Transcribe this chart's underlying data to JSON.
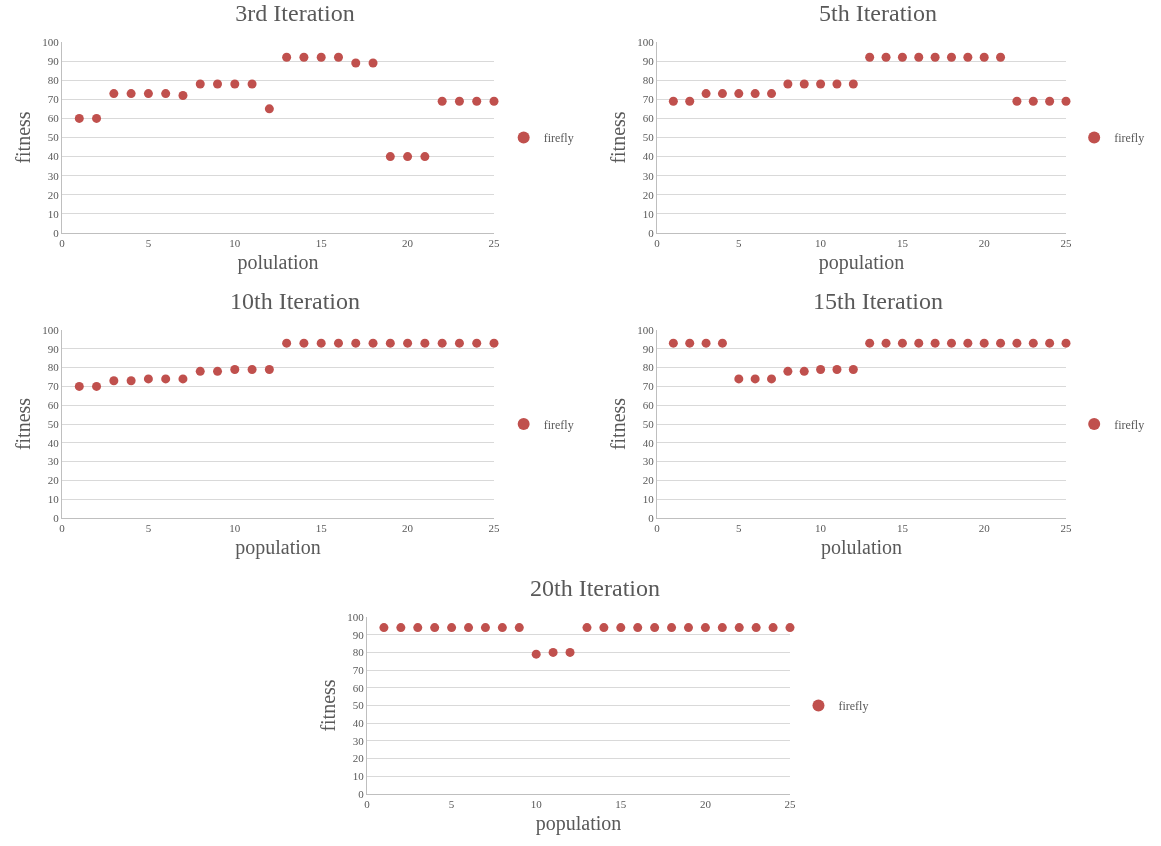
{
  "chart_data": [
    {
      "type": "scatter",
      "title": "3rd Iteration",
      "xlabel": "polulation",
      "ylabel": "fitness",
      "x": [
        1,
        2,
        3,
        4,
        5,
        6,
        7,
        8,
        9,
        10,
        11,
        12,
        13,
        14,
        15,
        16,
        17,
        18,
        19,
        20,
        21,
        22,
        23,
        24,
        25
      ],
      "series": [
        {
          "name": "firefly",
          "color": "#c0504d",
          "values": [
            60,
            60,
            73,
            73,
            73,
            73,
            72,
            78,
            78,
            78,
            78,
            65,
            92,
            92,
            92,
            92,
            89,
            89,
            40,
            40,
            40,
            69,
            69,
            69,
            69
          ]
        }
      ],
      "xlim": [
        0,
        25
      ],
      "xticks": [
        0,
        5,
        10,
        15,
        20,
        25
      ],
      "ylim": [
        0,
        100
      ],
      "yticks": [
        0,
        10,
        20,
        30,
        40,
        50,
        60,
        70,
        80,
        90,
        100
      ],
      "grid": "y",
      "legend": "right",
      "marker": "circle"
    },
    {
      "type": "scatter",
      "title": "5th Iteration",
      "xlabel": "population",
      "ylabel": "fitness",
      "x": [
        1,
        2,
        3,
        4,
        5,
        6,
        7,
        8,
        9,
        10,
        11,
        12,
        13,
        14,
        15,
        16,
        17,
        18,
        19,
        20,
        21,
        22,
        23,
        24,
        25
      ],
      "series": [
        {
          "name": "firefly",
          "color": "#c0504d",
          "values": [
            69,
            69,
            73,
            73,
            73,
            73,
            73,
            78,
            78,
            78,
            78,
            78,
            92,
            92,
            92,
            92,
            92,
            92,
            92,
            92,
            92,
            69,
            69,
            69,
            69
          ]
        }
      ],
      "xlim": [
        0,
        25
      ],
      "xticks": [
        0,
        5,
        10,
        15,
        20,
        25
      ],
      "ylim": [
        0,
        100
      ],
      "yticks": [
        0,
        10,
        20,
        30,
        40,
        50,
        60,
        70,
        80,
        90,
        100
      ],
      "grid": "y",
      "legend": "right",
      "marker": "circle"
    },
    {
      "type": "scatter",
      "title": "10th Iteration",
      "xlabel": "population",
      "ylabel": "fitness",
      "x": [
        1,
        2,
        3,
        4,
        5,
        6,
        7,
        8,
        9,
        10,
        11,
        12,
        13,
        14,
        15,
        16,
        17,
        18,
        19,
        20,
        21,
        22,
        23,
        24,
        25
      ],
      "series": [
        {
          "name": "firefly",
          "color": "#c0504d",
          "values": [
            70,
            70,
            73,
            73,
            74,
            74,
            74,
            78,
            78,
            79,
            79,
            79,
            93,
            93,
            93,
            93,
            93,
            93,
            93,
            93,
            93,
            93,
            93,
            93,
            93
          ]
        }
      ],
      "xlim": [
        0,
        25
      ],
      "xticks": [
        0,
        5,
        10,
        15,
        20,
        25
      ],
      "ylim": [
        0,
        100
      ],
      "yticks": [
        0,
        10,
        20,
        30,
        40,
        50,
        60,
        70,
        80,
        90,
        100
      ],
      "grid": "y",
      "legend": "right",
      "marker": "circle"
    },
    {
      "type": "scatter",
      "title": "15th Iteration",
      "xlabel": "polulation",
      "ylabel": "fitness",
      "x": [
        1,
        2,
        3,
        4,
        5,
        6,
        7,
        8,
        9,
        10,
        11,
        12,
        13,
        14,
        15,
        16,
        17,
        18,
        19,
        20,
        21,
        22,
        23,
        24,
        25
      ],
      "series": [
        {
          "name": "firefly",
          "color": "#c0504d",
          "values": [
            93,
            93,
            93,
            93,
            74,
            74,
            74,
            78,
            78,
            79,
            79,
            79,
            93,
            93,
            93,
            93,
            93,
            93,
            93,
            93,
            93,
            93,
            93,
            93,
            93
          ]
        }
      ],
      "xlim": [
        0,
        25
      ],
      "xticks": [
        0,
        5,
        10,
        15,
        20,
        25
      ],
      "ylim": [
        0,
        100
      ],
      "yticks": [
        0,
        10,
        20,
        30,
        40,
        50,
        60,
        70,
        80,
        90,
        100
      ],
      "grid": "y",
      "legend": "right",
      "marker": "circle"
    },
    {
      "type": "scatter",
      "title": "20th Iteration",
      "xlabel": "population",
      "ylabel": "fitness",
      "x": [
        1,
        2,
        3,
        4,
        5,
        6,
        7,
        8,
        9,
        10,
        11,
        12,
        13,
        14,
        15,
        16,
        17,
        18,
        19,
        20,
        21,
        22,
        23,
        24,
        25
      ],
      "series": [
        {
          "name": "firefly",
          "color": "#c0504d",
          "values": [
            94,
            94,
            94,
            94,
            94,
            94,
            94,
            94,
            94,
            79,
            80,
            80,
            94,
            94,
            94,
            94,
            94,
            94,
            94,
            94,
            94,
            94,
            94,
            94,
            94
          ]
        }
      ],
      "xlim": [
        0,
        25
      ],
      "xticks": [
        0,
        5,
        10,
        15,
        20,
        25
      ],
      "ylim": [
        0,
        100
      ],
      "yticks": [
        0,
        10,
        20,
        30,
        40,
        50,
        60,
        70,
        80,
        90,
        100
      ],
      "grid": "y",
      "legend": "right",
      "marker": "circle"
    }
  ]
}
